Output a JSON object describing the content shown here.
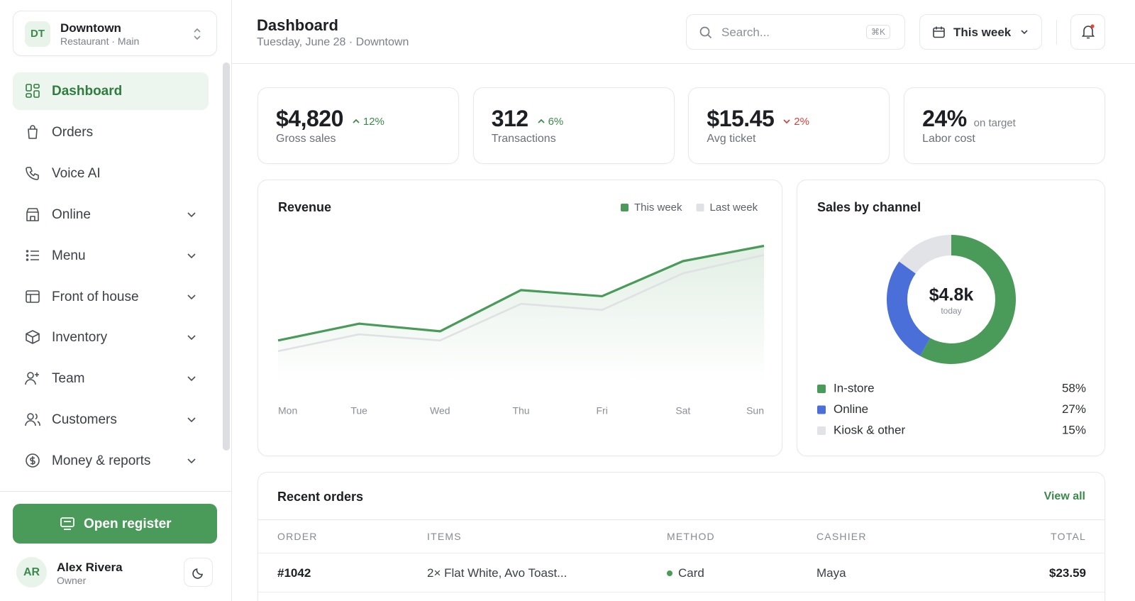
{
  "sidebar": {
    "location": {
      "initials": "DT",
      "name": "Downtown",
      "subtitle": "Restaurant · Main"
    },
    "nav": [
      {
        "label": "Dashboard",
        "has_submenu": false,
        "active": true
      },
      {
        "label": "Orders",
        "has_submenu": false
      },
      {
        "label": "Voice AI",
        "has_submenu": false
      },
      {
        "label": "Online",
        "has_submenu": true
      },
      {
        "label": "Menu",
        "has_submenu": true
      },
      {
        "label": "Front of house",
        "has_submenu": true
      },
      {
        "label": "Inventory",
        "has_submenu": true
      },
      {
        "label": "Team",
        "has_submenu": true
      },
      {
        "label": "Customers",
        "has_submenu": true
      },
      {
        "label": "Money & reports",
        "has_submenu": true
      }
    ],
    "register_button": "Open register",
    "user": {
      "initials": "AR",
      "name": "Alex Rivera",
      "role": "Owner"
    }
  },
  "header": {
    "title": "Dashboard",
    "subtitle": "Tuesday, June 28 · Downtown",
    "search_placeholder": "Search...",
    "search_shortcut": "⌘K",
    "range": "This week"
  },
  "kpis": [
    {
      "value": "$4,820",
      "change": "12%",
      "trend": "up",
      "label": "Gross sales"
    },
    {
      "value": "312",
      "change": "6%",
      "trend": "up",
      "label": "Transactions"
    },
    {
      "value": "$15.45",
      "change": "2%",
      "trend": "down",
      "label": "Avg ticket"
    },
    {
      "value": "24%",
      "note": "on target",
      "label": "Labor cost"
    }
  ],
  "chart_data": [
    {
      "type": "line",
      "area": true,
      "title": "Revenue",
      "categories": [
        "Mon",
        "Tue",
        "Wed",
        "Thu",
        "Fri",
        "Sat",
        "Sun"
      ],
      "series": [
        {
          "name": "This week",
          "color": "#4a9a59",
          "values": [
            28,
            39,
            34,
            61,
            57,
            80,
            90
          ]
        },
        {
          "name": "Last week",
          "color": "#dfe1e4",
          "values": [
            21,
            32,
            28,
            52,
            48,
            72,
            84
          ]
        }
      ],
      "ylim": [
        0,
        100
      ]
    },
    {
      "type": "donut",
      "title": "Sales by channel",
      "center_label": "$4.8k",
      "center_sublabel": "today",
      "categories": [
        "In-store",
        "Online",
        "Kiosk & other"
      ],
      "values": [
        58,
        27,
        15
      ],
      "value_labels": [
        "58%",
        "27%",
        "15%"
      ],
      "colors": [
        "#4a9a59",
        "#4a6fd9",
        "#e2e3e7"
      ]
    }
  ],
  "orders": {
    "title": "Recent orders",
    "action": "View all",
    "columns": [
      "ORDER",
      "ITEMS",
      "METHOD",
      "CASHIER",
      "TOTAL"
    ],
    "rows": [
      [
        "#1042",
        "2× Flat White, Avo Toast...",
        "Card",
        "Maya",
        "$23.59"
      ]
    ]
  }
}
